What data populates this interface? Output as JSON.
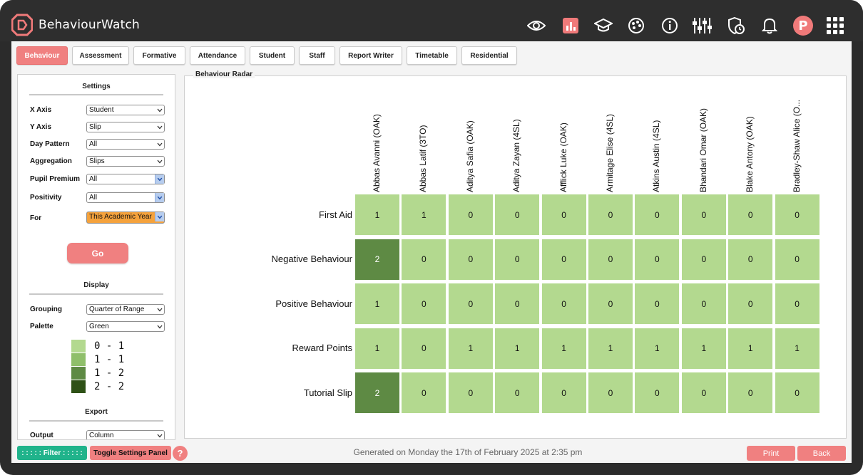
{
  "app": {
    "title": "BehaviourWatch",
    "user_initial": "P"
  },
  "topbar_icons": [
    "eye-icon",
    "chart-icon",
    "graduation-cap-icon",
    "palette-icon",
    "info-icon",
    "sliders-icon",
    "shield-clock-icon",
    "bell-icon",
    "avatar",
    "grid-menu-icon"
  ],
  "tabs": [
    {
      "label": "Behaviour",
      "active": true
    },
    {
      "label": "Assessment"
    },
    {
      "label": "Formative"
    },
    {
      "label": "Attendance"
    },
    {
      "label": "Student"
    },
    {
      "label": "Staff"
    },
    {
      "label": "Report Writer"
    },
    {
      "label": "Timetable"
    },
    {
      "label": "Residential"
    }
  ],
  "settings": {
    "title": "Settings",
    "fields": [
      {
        "label": "X Axis",
        "value": "Student"
      },
      {
        "label": "Y Axis",
        "value": "Slip"
      },
      {
        "label": "Day Pattern",
        "value": "All"
      },
      {
        "label": "Aggregation",
        "value": "Slips"
      },
      {
        "label": "Pupil Premium",
        "value": "All"
      },
      {
        "label": "Positivity",
        "value": "All"
      },
      {
        "label": "For",
        "value": "This Academic Year"
      }
    ],
    "go_label": "Go"
  },
  "display": {
    "title": "Display",
    "fields": [
      {
        "label": "Grouping",
        "value": "Quarter of Range"
      },
      {
        "label": "Palette",
        "value": "Green"
      }
    ],
    "legend": [
      {
        "range": "0 - 1",
        "color": "#b3d98f"
      },
      {
        "range": "1 - 1",
        "color": "#8fbf6a"
      },
      {
        "range": "1 - 2",
        "color": "#5e8a44"
      },
      {
        "range": "2 - 2",
        "color": "#2e5116"
      }
    ]
  },
  "export": {
    "title": "Export",
    "fields": [
      {
        "label": "Output",
        "value": "Column"
      }
    ]
  },
  "panel": {
    "title": "Behaviour Radar"
  },
  "chart_data": {
    "type": "heatmap",
    "title": "Behaviour Radar",
    "x": [
      "Abbas Avanni (OAK)",
      "Abbas Latif (3TO)",
      "Aditya Safia (OAK)",
      "Aditya Zayan (4SL)",
      "Afflick Luke (OAK)",
      "Armitage Elise (4SL)",
      "Atkins Austin (4SL)",
      "Bhandari Omar (OAK)",
      "Blake Antony (OAK)",
      "Bradley-Shaw Alice (O..."
    ],
    "y": [
      "First Aid",
      "Negative Behaviour",
      "Positive Behaviour",
      "Reward Points",
      "Tutorial Slip"
    ],
    "values": [
      [
        1,
        1,
        0,
        0,
        0,
        0,
        0,
        0,
        0,
        0
      ],
      [
        2,
        0,
        0,
        0,
        0,
        0,
        0,
        0,
        0,
        0
      ],
      [
        1,
        0,
        0,
        0,
        0,
        0,
        0,
        0,
        0,
        0
      ],
      [
        1,
        0,
        1,
        1,
        1,
        1,
        1,
        1,
        1,
        1
      ],
      [
        2,
        0,
        0,
        0,
        0,
        0,
        0,
        0,
        0,
        0
      ]
    ],
    "palette": {
      "low": "#b3d98f",
      "high": "#5e8a44"
    }
  },
  "footer": {
    "filter_label": ": : : : : Filter : : : : :",
    "toggle_label": "Toggle Settings Panel",
    "help_label": "?",
    "generated": "Generated on Monday the 17th of February 2025 at 2:35 pm",
    "print_label": "Print",
    "back_label": "Back"
  }
}
